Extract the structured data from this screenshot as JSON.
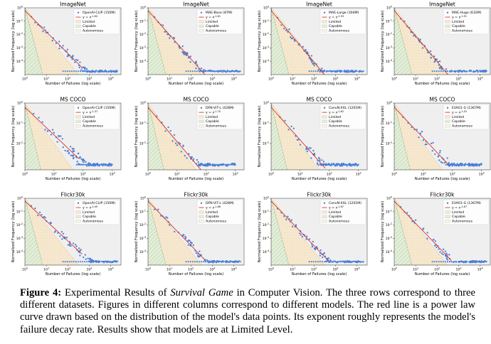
{
  "figure": {
    "caption_label": "Figure 4:",
    "caption_pre": " Experimental Results of ",
    "caption_italic": "Survival Game",
    "caption_post": " in Computer Vision. The three rows correspond to three different datasets. Figures in different columns correspond to different models. The red line is a power law curve drawn based on the distribution of the model's data points. Its exponent roughly represents the model's failure decay rate. Results show that models are at Limited Level."
  },
  "colors": {
    "scatter": "#4a7fd8",
    "fit": "#d9342b",
    "limited": "#f6e8cf",
    "limited_edge": "#d9a860",
    "capable": "#e3eed9",
    "capable_edge": "#6a9a5a",
    "background": "#efefef"
  },
  "chart_data": [
    {
      "type": "scatter",
      "title": "ImageNet",
      "xlabel": "Number of Failures (log scale)",
      "ylabel": "Normalized Frequency (log scale)",
      "xscale": "log",
      "yscale": "log",
      "xlim": [
        1,
        30000
      ],
      "ylim": [
        1e-05,
        1
      ],
      "xticks": [
        "10^0",
        "10^1",
        "10^2",
        "10^3",
        "10^4"
      ],
      "yticks": [
        "10^0",
        "10^-1",
        "10^-2",
        "10^-3",
        "10^-4"
      ],
      "legend": [
        "OpenAI-CLIP (150M)",
        "y = x^-1.60",
        "Limited",
        "Capable",
        "Autonomous"
      ],
      "fit_exponent": -1.6,
      "max_failures": 20000
    },
    {
      "type": "scatter",
      "title": "ImageNet",
      "xlabel": "Number of Failures (log scale)",
      "ylabel": "Normalized Frequency (log scale)",
      "xscale": "log",
      "yscale": "log",
      "xlim": [
        1,
        30000
      ],
      "ylim": [
        1e-05,
        1
      ],
      "xticks": [
        "10^0",
        "10^1",
        "10^2",
        "10^3",
        "10^4"
      ],
      "yticks": [
        "10^0",
        "10^-1",
        "10^-2",
        "10^-3",
        "10^-4"
      ],
      "legend": [
        "MAE-Base (87M)",
        "y = x^-1.81",
        "Limited",
        "Capable",
        "Autonomous"
      ],
      "fit_exponent": -1.81,
      "max_failures": 20000
    },
    {
      "type": "scatter",
      "title": "ImageNet",
      "xlabel": "Number of Failures (log scale)",
      "ylabel": "Normalized Frequency (log scale)",
      "xscale": "log",
      "yscale": "log",
      "xlim": [
        1,
        30000
      ],
      "ylim": [
        1e-05,
        1
      ],
      "xticks": [
        "10^0",
        "10^1",
        "10^2",
        "10^3",
        "10^4"
      ],
      "yticks": [
        "10^0",
        "10^-1",
        "10^-2",
        "10^-3",
        "10^-4"
      ],
      "legend": [
        "MAE-Large (304M)",
        "y = x^-1.93",
        "Limited",
        "Capable",
        "Autonomous"
      ],
      "fit_exponent": -1.93,
      "max_failures": 20000
    },
    {
      "type": "scatter",
      "title": "ImageNet",
      "xlabel": "Number of Failures (log scale)",
      "ylabel": "Normalized Frequency (log scale)",
      "xscale": "log",
      "yscale": "log",
      "xlim": [
        1,
        30000
      ],
      "ylim": [
        1e-05,
        1
      ],
      "xticks": [
        "10^0",
        "10^1",
        "10^2",
        "10^3",
        "10^4"
      ],
      "yticks": [
        "10^0",
        "10^-1",
        "10^-2",
        "10^-3",
        "10^-4"
      ],
      "legend": [
        "MAE-Huge (632M)",
        "y = x^-1.91",
        "Limited",
        "Capable",
        "Autonomous"
      ],
      "fit_exponent": -1.91,
      "max_failures": 20000
    },
    {
      "type": "scatter",
      "title": "MS COCO",
      "xlabel": "Number of Failures (log scale)",
      "ylabel": "Normalized Frequency (log scale)",
      "xscale": "log",
      "yscale": "log",
      "xlim": [
        1,
        2000
      ],
      "ylim": [
        0.0005,
        1
      ],
      "xticks": [
        "10^0",
        "10^1",
        "10^2",
        "10^3"
      ],
      "yticks": [
        "10^0",
        "10^-1",
        "10^-2"
      ],
      "legend": [
        "OpenAI-CLIP (150M)",
        "y = x^-1.37",
        "Limited",
        "Capable",
        "Autonomous"
      ],
      "fit_exponent": -1.37,
      "max_failures": 1000
    },
    {
      "type": "scatter",
      "title": "MS COCO",
      "xlabel": "Number of Failures (log scale)",
      "ylabel": "Normalized Frequency (log scale)",
      "xscale": "log",
      "yscale": "log",
      "xlim": [
        1,
        2000
      ],
      "ylim": [
        0.0005,
        1
      ],
      "xticks": [
        "10^0",
        "10^1",
        "10^2",
        "10^3"
      ],
      "yticks": [
        "10^0",
        "10^-1",
        "10^-2"
      ],
      "legend": [
        "DFN-ViT-L (428M)",
        "y = x^-1.70",
        "Limited",
        "Capable",
        "Autonomous"
      ],
      "fit_exponent": -1.7,
      "max_failures": 1000
    },
    {
      "type": "scatter",
      "title": "MS COCO",
      "xlabel": "Number of Failures (log scale)",
      "ylabel": "Normalized Frequency (log scale)",
      "xscale": "log",
      "yscale": "log",
      "xlim": [
        1,
        2000
      ],
      "ylim": [
        0.0005,
        1
      ],
      "xticks": [
        "10^0",
        "10^1",
        "10^2",
        "10^3"
      ],
      "yticks": [
        "10^0",
        "10^-1",
        "10^-2"
      ],
      "legend": [
        "ConvN-XXL (1201M)",
        "y = x^-1.62",
        "Limited",
        "Capable",
        "Autonomous"
      ],
      "fit_exponent": -1.62,
      "max_failures": 1000
    },
    {
      "type": "scatter",
      "title": "MS COCO",
      "xlabel": "Number of Failures (log scale)",
      "ylabel": "Normalized Frequency (log scale)",
      "xscale": "log",
      "yscale": "log",
      "xlim": [
        1,
        2000
      ],
      "ylim": [
        0.0005,
        1
      ],
      "xticks": [
        "10^0",
        "10^1",
        "10^2",
        "10^3"
      ],
      "yticks": [
        "10^0",
        "10^-1",
        "10^-2"
      ],
      "legend": [
        "EVA01-G (1367M)",
        "y = x^-1.52",
        "Limited",
        "Capable",
        "Autonomous"
      ],
      "fit_exponent": -1.52,
      "max_failures": 1000
    },
    {
      "type": "scatter",
      "title": "Flickr30k",
      "xlabel": "Number of Failures (log scale)",
      "ylabel": "Normalized Frequency (log scale)",
      "xscale": "log",
      "yscale": "log",
      "xlim": [
        1,
        30000
      ],
      "ylim": [
        1e-05,
        1
      ],
      "xticks": [
        "10^0",
        "10^1",
        "10^2",
        "10^3",
        "10^4"
      ],
      "yticks": [
        "10^0",
        "10^-1",
        "10^-2",
        "10^-3",
        "10^-4"
      ],
      "legend": [
        "OpenAI-CLIP (150M)",
        "y = x^-1.49",
        "Limited",
        "Capable",
        "Autonomous"
      ],
      "fit_exponent": -1.49,
      "max_failures": 20000
    },
    {
      "type": "scatter",
      "title": "Flickr30k",
      "xlabel": "Number of Failures (log scale)",
      "ylabel": "Normalized Frequency (log scale)",
      "xscale": "log",
      "yscale": "log",
      "xlim": [
        1,
        30000
      ],
      "ylim": [
        1e-05,
        1
      ],
      "xticks": [
        "10^0",
        "10^1",
        "10^2",
        "10^3",
        "10^4"
      ],
      "yticks": [
        "10^0",
        "10^-1",
        "10^-2",
        "10^-3",
        "10^-4"
      ],
      "legend": [
        "DFN-ViT-L (428M)",
        "y = x^-1.66",
        "Limited",
        "Capable",
        "Autonomous"
      ],
      "fit_exponent": -1.66,
      "max_failures": 20000
    },
    {
      "type": "scatter",
      "title": "Flickr30k",
      "xlabel": "Number of Failures (log scale)",
      "ylabel": "Normalized Frequency (log scale)",
      "xscale": "log",
      "yscale": "log",
      "xlim": [
        1,
        30000
      ],
      "ylim": [
        1e-05,
        1
      ],
      "xticks": [
        "10^0",
        "10^1",
        "10^2",
        "10^3",
        "10^4"
      ],
      "yticks": [
        "10^0",
        "10^-1",
        "10^-2",
        "10^-3",
        "10^-4"
      ],
      "legend": [
        "ConvN-XXL (1201M)",
        "y = x^-1.67",
        "Limited",
        "Capable",
        "Autonomous"
      ],
      "fit_exponent": -1.67,
      "max_failures": 20000
    },
    {
      "type": "scatter",
      "title": "Flickr30k",
      "xlabel": "Number of Failures (log scale)",
      "ylabel": "Normalized Frequency (log scale)",
      "xscale": "log",
      "yscale": "log",
      "xlim": [
        1,
        30000
      ],
      "ylim": [
        1e-05,
        1
      ],
      "xticks": [
        "10^0",
        "10^1",
        "10^2",
        "10^3",
        "10^4"
      ],
      "yticks": [
        "10^0",
        "10^-1",
        "10^-2",
        "10^-3",
        "10^-4"
      ],
      "legend": [
        "EVA01-G (1367M)",
        "y = x^-1.67",
        "Limited",
        "Capable",
        "Autonomous"
      ],
      "fit_exponent": -1.67,
      "max_failures": 20000
    }
  ]
}
